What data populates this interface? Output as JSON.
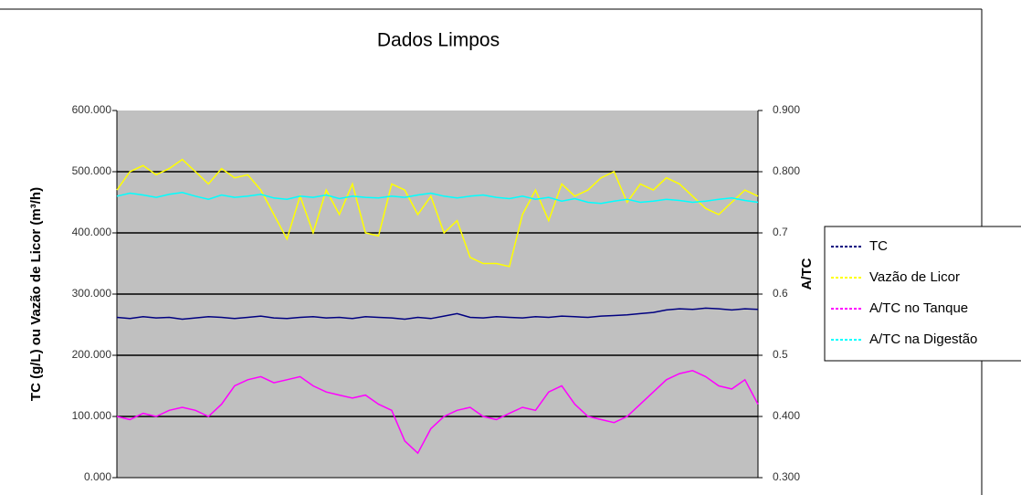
{
  "chart_data": {
    "type": "line",
    "title": "Dados Limpos",
    "ylabel": "TC (g/L) ou Vazão de Licor (m³/h)",
    "y2label": "A/TC",
    "ylim": [
      0,
      600
    ],
    "yticks": [
      {
        "value": 0,
        "label": "0.000"
      },
      {
        "value": 100,
        "label": "100.000"
      },
      {
        "value": 200,
        "label": "200.000"
      },
      {
        "value": 300,
        "label": "300.000"
      },
      {
        "value": 400,
        "label": "400.000"
      },
      {
        "value": 500,
        "label": "500.000"
      },
      {
        "value": 600,
        "label": "600.000"
      }
    ],
    "y2lim": [
      0.3,
      0.9
    ],
    "y2ticks": [
      {
        "value": 0.3,
        "label": "0.300"
      },
      {
        "value": 0.4,
        "label": "0.400"
      },
      0.5,
      0.6,
      0.7,
      {
        "value": 0.8,
        "label": "0.800"
      },
      {
        "value": 0.9,
        "label": "0.900"
      }
    ],
    "grid": true,
    "background": "#c0c0c0",
    "legend": "right",
    "series": [
      {
        "name": "TC",
        "color": "#000080",
        "values": [
          262,
          260,
          263,
          261,
          262,
          259,
          261,
          263,
          262,
          260,
          262,
          264,
          261,
          260,
          262,
          263,
          261,
          262,
          260,
          263,
          262,
          261,
          259,
          262,
          260,
          264,
          268,
          262,
          261,
          263,
          262,
          261,
          263,
          262,
          264,
          263,
          262,
          264,
          265,
          266,
          268,
          270,
          274,
          276,
          275,
          277,
          276,
          274,
          276,
          275
        ]
      },
      {
        "name": "Vazão de Licor",
        "color": "#ffff00",
        "values": [
          470,
          500,
          510,
          495,
          505,
          520,
          500,
          480,
          505,
          490,
          495,
          470,
          430,
          390,
          460,
          400,
          470,
          430,
          480,
          400,
          395,
          480,
          470,
          430,
          460,
          400,
          420,
          360,
          350,
          350,
          345,
          430,
          470,
          420,
          480,
          460,
          470,
          490,
          500,
          450,
          480,
          470,
          490,
          480,
          460,
          440,
          430,
          450,
          470,
          460
        ]
      },
      {
        "name": "A/TC no Tanque",
        "color": "#ff00ff",
        "axis": "y2",
        "values": [
          0.4,
          0.395,
          0.405,
          0.4,
          0.41,
          0.415,
          0.41,
          0.4,
          0.42,
          0.45,
          0.46,
          0.465,
          0.455,
          0.46,
          0.465,
          0.45,
          0.44,
          0.435,
          0.43,
          0.435,
          0.42,
          0.41,
          0.36,
          0.34,
          0.38,
          0.4,
          0.41,
          0.415,
          0.4,
          0.395,
          0.405,
          0.415,
          0.41,
          0.44,
          0.45,
          0.42,
          0.4,
          0.395,
          0.39,
          0.4,
          0.42,
          0.44,
          0.46,
          0.47,
          0.475,
          0.465,
          0.45,
          0.445,
          0.46,
          0.42
        ]
      },
      {
        "name": "A/TC na Digestão",
        "color": "#00ffff",
        "axis": "y2",
        "values": [
          0.76,
          0.765,
          0.762,
          0.758,
          0.763,
          0.766,
          0.76,
          0.755,
          0.762,
          0.758,
          0.76,
          0.763,
          0.757,
          0.755,
          0.76,
          0.758,
          0.762,
          0.756,
          0.76,
          0.758,
          0.757,
          0.76,
          0.758,
          0.762,
          0.765,
          0.76,
          0.757,
          0.76,
          0.762,
          0.758,
          0.756,
          0.76,
          0.755,
          0.758,
          0.752,
          0.756,
          0.75,
          0.748,
          0.752,
          0.755,
          0.75,
          0.752,
          0.755,
          0.753,
          0.75,
          0.752,
          0.755,
          0.757,
          0.753,
          0.75
        ]
      }
    ]
  }
}
